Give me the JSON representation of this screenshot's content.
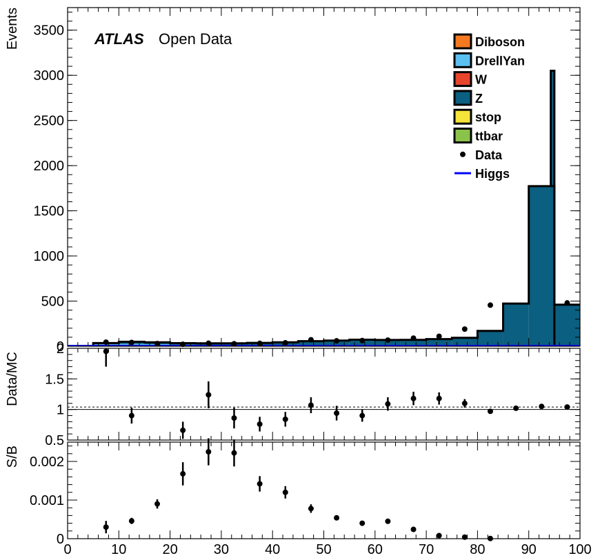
{
  "chart_data": [
    {
      "type": "bar",
      "stacked": true,
      "ylabel": "Events",
      "ylim": [
        0,
        3750
      ],
      "x_range": [
        0,
        100
      ],
      "yticks": [
        0,
        500,
        1000,
        1500,
        2000,
        2500,
        3000,
        3500
      ],
      "ytick_labels": [
        "0",
        "500",
        "1000",
        "1500",
        "2000",
        "2500",
        "3000",
        "3500"
      ],
      "annotation": {
        "experiment": "ATLAS",
        "label": "Open Data"
      },
      "legend_position": "top-right",
      "bin_edges": [
        5,
        10,
        15,
        20,
        25,
        30,
        35,
        40,
        45,
        50,
        55,
        60,
        65,
        70,
        75,
        80,
        85,
        90,
        95,
        100
      ],
      "series": [
        {
          "name": "Diboson",
          "color": "#f47920",
          "values": [
            1,
            1,
            1,
            1,
            1,
            1,
            1,
            1,
            1,
            1,
            1,
            1,
            1,
            1,
            1,
            1,
            2,
            3,
            1
          ]
        },
        {
          "name": "DrellYan",
          "color": "#5bc0f0",
          "values": [
            20,
            25,
            22,
            15,
            10,
            8,
            6,
            5,
            4,
            3,
            3,
            2,
            2,
            2,
            2,
            2,
            3,
            5,
            3
          ]
        },
        {
          "name": "W",
          "color": "#e8452c",
          "values": [
            0,
            0,
            0,
            0,
            0,
            0,
            0,
            0,
            0,
            0,
            0,
            0,
            0,
            0,
            0,
            0,
            0,
            0,
            0
          ]
        },
        {
          "name": "Z",
          "color": "#0b5f80",
          "values": [
            14,
            24,
            21,
            18,
            21,
            23,
            30,
            38,
            51,
            59,
            69,
            67,
            68,
            76,
            91,
            167,
            468,
            1765,
            456
          ]
        },
        {
          "name": "stop",
          "color": "#f5e43a",
          "values": [
            0,
            0,
            0,
            0,
            0,
            0,
            0,
            0,
            0,
            0,
            0,
            0,
            0,
            0,
            0,
            0,
            0,
            0,
            0
          ]
        },
        {
          "name": "ttbar",
          "color": "#8bc34a",
          "values": [
            0,
            0,
            0,
            0,
            0,
            0,
            0,
            0,
            0,
            0,
            0,
            0,
            0,
            0,
            0,
            0,
            0,
            0,
            0
          ]
        }
      ],
      "top_bins_extra": {
        "bin": 17,
        "upper_total": 3050
      },
      "data_points": {
        "name": "Data",
        "x": [
          7.5,
          12.5,
          17.5,
          22.5,
          27.5,
          32.5,
          37.5,
          42.5,
          47.5,
          52.5,
          57.5,
          62.5,
          67.5,
          72.5,
          77.5,
          82.5,
          87.5,
          92.5,
          97.5
        ],
        "y": [
          45,
          42,
          30,
          22,
          33,
          28,
          32,
          38,
          72,
          60,
          63,
          68,
          90,
          110,
          190,
          455,
          null,
          null,
          480
        ]
      },
      "higgs_line": {
        "name": "Higgs",
        "color": "#0000ff",
        "value_at_peak": 4
      }
    },
    {
      "type": "scatter",
      "ylabel": "Data/MC",
      "ylim": [
        0.5,
        2.0
      ],
      "yticks": [
        0.5,
        1.0,
        1.5,
        2.0
      ],
      "ytick_labels": [
        "0.5",
        "1",
        "1.5",
        "2"
      ],
      "reference_lines": [
        1.0,
        1.04
      ],
      "x": [
        7.5,
        12.5,
        22.5,
        27.5,
        32.5,
        37.5,
        42.5,
        47.5,
        52.5,
        57.5,
        62.5,
        67.5,
        72.5,
        77.5,
        82.5,
        87.5,
        92.5,
        97.5
      ],
      "y": [
        1.95,
        0.9,
        0.66,
        1.24,
        0.86,
        0.76,
        0.84,
        1.07,
        0.94,
        0.9,
        1.09,
        1.18,
        1.18,
        1.1,
        0.97,
        1.02,
        1.05,
        1.04
      ],
      "yerr": [
        0.25,
        0.13,
        0.14,
        0.22,
        0.17,
        0.12,
        0.12,
        0.13,
        0.12,
        0.1,
        0.11,
        0.11,
        0.1,
        0.07,
        0.03,
        0.02,
        0.02,
        0.03
      ]
    },
    {
      "type": "scatter",
      "ylabel": "S/B",
      "xlim": [
        0,
        100
      ],
      "ylim": [
        0,
        0.0025
      ],
      "yticks": [
        0,
        0.001,
        0.002
      ],
      "ytick_labels": [
        "0",
        "0.001",
        "0.002"
      ],
      "xticks": [
        0,
        10,
        20,
        30,
        40,
        50,
        60,
        70,
        80,
        90,
        100
      ],
      "xtick_labels": [
        "0",
        "10",
        "20",
        "30",
        "40",
        "50",
        "60",
        "70",
        "80",
        "90",
        "100"
      ],
      "x": [
        7.5,
        12.5,
        17.5,
        22.5,
        27.5,
        32.5,
        37.5,
        42.5,
        47.5,
        52.5,
        57.5,
        62.5,
        67.5,
        72.5,
        77.5,
        82.5
      ],
      "y": [
        0.0003,
        0.00046,
        0.0009,
        0.00168,
        0.00225,
        0.00222,
        0.00142,
        0.0012,
        0.00078,
        0.00054,
        0.0004,
        0.00045,
        0.00024,
        8e-05,
        4e-05,
        5e-06
      ],
      "yerr": [
        0.00016,
        8e-05,
        0.00012,
        0.0003,
        0.00035,
        0.00035,
        0.0002,
        0.00016,
        0.00011,
        6e-05,
        6e-05,
        6e-05,
        0.0,
        0.0,
        0.0,
        0.0
      ]
    }
  ]
}
